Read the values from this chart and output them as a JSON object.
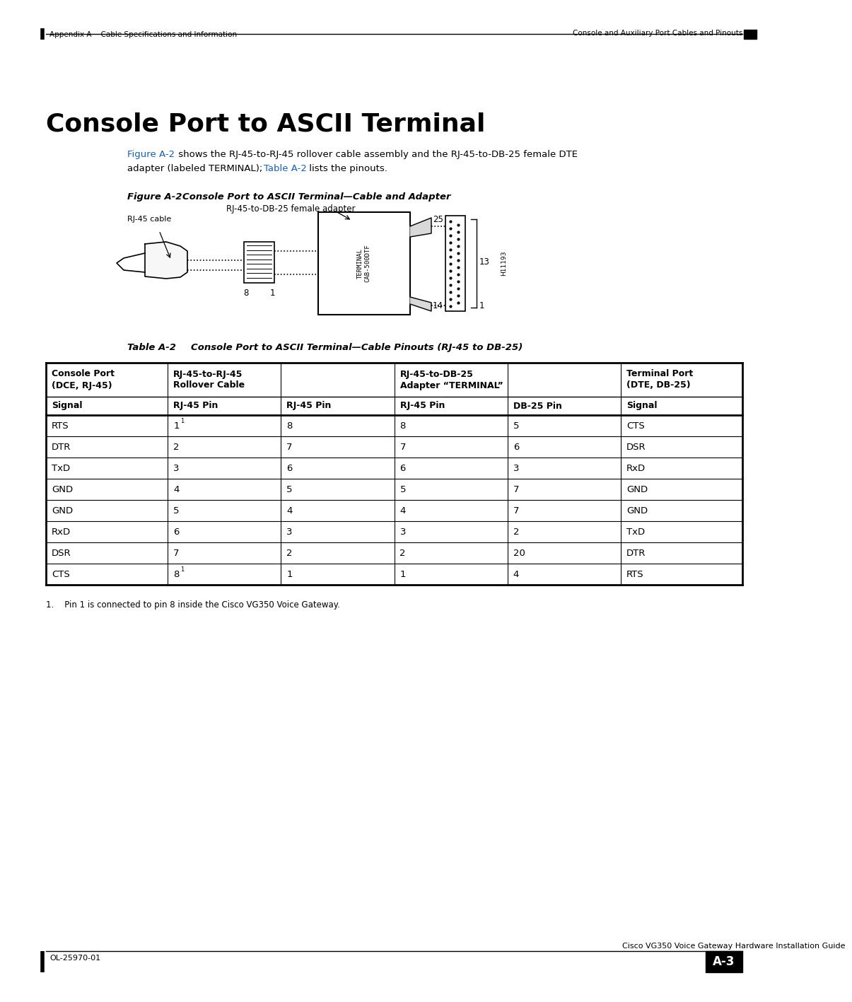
{
  "page_width": 10.8,
  "page_height": 13.97,
  "bg_color": "#ffffff",
  "header_left": "Appendix A    Cable Specifications and Information",
  "header_right": "Console and Auxiliary Port Cables and Pinouts",
  "footer_left": "OL-25970-01",
  "footer_right": "Cisco VG350 Voice Gateway Hardware Installation Guide",
  "footer_page": "A-3",
  "section_title": "Console Port to ASCII Terminal",
  "figure_label": "Figure A-2",
  "figure_title": "Console Port to ASCII Terminal—Cable and Adapter",
  "table_label": "Table A-2",
  "table_title": "Console Port to ASCII Terminal—Cable Pinouts (RJ-45 to DB-25)",
  "footnote": "1.    Pin 1 is connected to pin 8 inside the Cisco VG350 Voice Gateway.",
  "col_headers_row2": [
    "Signal",
    "RJ-45 Pin",
    "RJ-45 Pin",
    "RJ-45 Pin",
    "DB-25 Pin",
    "Signal"
  ],
  "table_data": [
    [
      "RTS",
      "1",
      "8",
      "8",
      "5",
      "CTS"
    ],
    [
      "DTR",
      "2",
      "7",
      "7",
      "6",
      "DSR"
    ],
    [
      "TxD",
      "3",
      "6",
      "6",
      "3",
      "RxD"
    ],
    [
      "GND",
      "4",
      "5",
      "5",
      "7",
      "GND"
    ],
    [
      "GND",
      "5",
      "4",
      "4",
      "7",
      "GND"
    ],
    [
      "RxD",
      "6",
      "3",
      "3",
      "2",
      "TxD"
    ],
    [
      "DSR",
      "7",
      "2",
      "2",
      "20",
      "DTR"
    ],
    [
      "CTS",
      "8",
      "1",
      "1",
      "4",
      "RTS"
    ]
  ],
  "superscript_rows": [
    0,
    7
  ],
  "superscript_cols": [
    1
  ],
  "link_color": "#1a5fa8"
}
